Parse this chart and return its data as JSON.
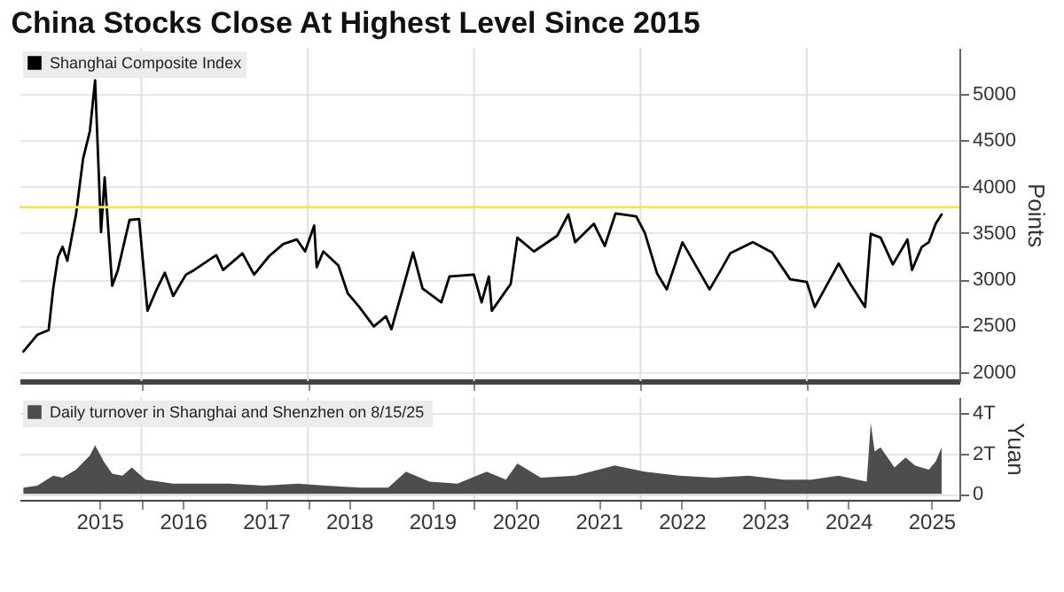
{
  "chart_data": [
    {
      "type": "line",
      "title": "China Stocks Close At Highest Level Since 2015",
      "ylabel": "Points",
      "legend": "top left",
      "grid": true,
      "tick_labels": "y",
      "x": [
        "2014-08-01",
        "2014-10-01",
        "2014-11-20",
        "2014-12-10",
        "2014-12-31",
        "2015-01-20",
        "2015-02-10",
        "2015-03-20",
        "2015-04-20",
        "2015-05-20",
        "2015-06-12",
        "2015-07-08",
        "2015-07-24",
        "2015-08-26",
        "2015-09-20",
        "2015-11-10",
        "2015-12-22",
        "2016-01-28",
        "2016-03-10",
        "2016-04-13",
        "2016-05-20",
        "2016-07-15",
        "2016-08-20",
        "2016-11-25",
        "2016-12-25",
        "2017-03-20",
        "2017-05-10",
        "2017-07-15",
        "2017-09-15",
        "2017-11-14",
        "2017-12-20",
        "2018-01-29",
        "2018-02-09",
        "2018-03-10",
        "2018-05-15",
        "2018-06-25",
        "2018-08-15",
        "2018-10-18",
        "2018-12-10",
        "2019-01-03",
        "2019-04-08",
        "2019-05-20",
        "2019-08-10",
        "2019-09-15",
        "2019-12-31",
        "2020-02-03",
        "2020-03-06",
        "2020-03-19",
        "2020-06-10",
        "2020-07-09",
        "2020-09-20",
        "2020-12-31",
        "2021-02-18",
        "2021-03-20",
        "2021-06-10",
        "2021-07-28",
        "2021-09-13",
        "2021-12-13",
        "2022-01-20",
        "2022-03-15",
        "2022-04-26",
        "2022-07-04",
        "2022-10-31",
        "2022-12-20",
        "2023-01-30",
        "2023-05-09",
        "2023-08-01",
        "2023-10-20",
        "2024-01-01",
        "2024-02-05",
        "2024-05-20",
        "2024-07-10",
        "2024-09-13",
        "2024-10-08",
        "2024-11-20",
        "2025-01-13",
        "2025-03-18",
        "2025-04-07",
        "2025-05-20",
        "2025-06-20",
        "2025-07-20",
        "2025-08-15"
      ],
      "series": [
        {
          "name": "Shanghai Composite Index",
          "color": "#000000",
          "values": [
            2220,
            2400,
            2450,
            2900,
            3240,
            3350,
            3200,
            3700,
            4300,
            4600,
            5150,
            3510,
            4100,
            2930,
            3100,
            3640,
            3650,
            2660,
            2900,
            3070,
            2820,
            3050,
            3100,
            3260,
            3100,
            3280,
            3050,
            3250,
            3380,
            3430,
            3300,
            3580,
            3130,
            3300,
            3150,
            2850,
            2700,
            2490,
            2600,
            2460,
            3290,
            2900,
            2750,
            3030,
            3050,
            2750,
            3030,
            2660,
            2950,
            3450,
            3300,
            3470,
            3700,
            3400,
            3600,
            3360,
            3710,
            3680,
            3500,
            3060,
            2890,
            3400,
            2890,
            3100,
            3280,
            3400,
            3290,
            3000,
            2970,
            2700,
            3170,
            2950,
            2700,
            3490,
            3450,
            3160,
            3430,
            3100,
            3350,
            3400,
            3600,
            3700
          ]
        }
      ],
      "xlim": [
        "2014-07-15",
        "2025-11-01"
      ],
      "xticks": [
        {
          "value": "2016-01-01",
          "label": null
        },
        {
          "value": "2018-01-01",
          "label": null
        },
        {
          "value": "2020-01-01",
          "label": null
        },
        {
          "value": "2022-01-01",
          "label": null
        },
        {
          "value": "2024-01-01",
          "label": null
        }
      ],
      "ylim": [
        1900,
        5500
      ],
      "yticks": [
        2000,
        2500,
        3000,
        3500,
        4000,
        4500,
        5000
      ],
      "ref_lines": [
        {
          "axis": "y",
          "value": 3780,
          "color": "#f2e36b"
        }
      ]
    },
    {
      "type": "area",
      "ylabel": "Yuan",
      "legend": "top left",
      "grid": true,
      "x": [
        "2014-08-01",
        "2014-10-01",
        "2014-12-10",
        "2015-01-20",
        "2015-03-20",
        "2015-05-20",
        "2015-06-12",
        "2015-07-20",
        "2015-08-26",
        "2015-10-10",
        "2015-11-20",
        "2016-01-20",
        "2016-05-20",
        "2016-09-20",
        "2017-01-20",
        "2017-06-20",
        "2017-11-20",
        "2018-03-20",
        "2018-08-20",
        "2018-12-20",
        "2019-03-08",
        "2019-06-20",
        "2019-10-20",
        "2020-02-25",
        "2020-05-20",
        "2020-07-09",
        "2020-10-20",
        "2021-03-20",
        "2021-09-10",
        "2022-01-20",
        "2022-06-20",
        "2022-11-20",
        "2023-04-20",
        "2023-09-20",
        "2024-01-20",
        "2024-05-20",
        "2024-09-20",
        "2024-10-08",
        "2024-10-25",
        "2024-11-20",
        "2025-01-20",
        "2025-03-10",
        "2025-04-20",
        "2025-06-20",
        "2025-07-20",
        "2025-08-15"
      ],
      "series": [
        {
          "name": "Daily turnover in Shanghai and Shenzhen  on 8/15/25",
          "color": "#4d4d4d",
          "values": [
            0.3,
            0.4,
            0.9,
            0.8,
            1.2,
            1.9,
            2.4,
            1.6,
            1.0,
            0.9,
            1.3,
            0.7,
            0.5,
            0.5,
            0.5,
            0.4,
            0.5,
            0.4,
            0.3,
            0.3,
            1.1,
            0.6,
            0.5,
            1.1,
            0.7,
            1.5,
            0.8,
            0.9,
            1.4,
            1.1,
            0.9,
            0.8,
            0.9,
            0.7,
            0.7,
            0.9,
            0.6,
            3.5,
            2.1,
            2.3,
            1.3,
            1.8,
            1.4,
            1.2,
            1.6,
            2.3
          ]
        }
      ],
      "xlim": [
        "2014-07-15",
        "2025-11-01"
      ],
      "xticks": [
        {
          "value": "2015-07-01",
          "label": "2015"
        },
        {
          "value": "2016-07-01",
          "label": "2016"
        },
        {
          "value": "2017-07-01",
          "label": "2017"
        },
        {
          "value": "2018-07-01",
          "label": "2018"
        },
        {
          "value": "2019-07-01",
          "label": "2019"
        },
        {
          "value": "2020-07-01",
          "label": "2020"
        },
        {
          "value": "2021-07-01",
          "label": "2021"
        },
        {
          "value": "2022-07-01",
          "label": "2022"
        },
        {
          "value": "2023-07-01",
          "label": "2023"
        },
        {
          "value": "2024-07-01",
          "label": "2024"
        },
        {
          "value": "2025-07-01",
          "label": "2025"
        },
        {
          "value": "2016-01-01",
          "label": null
        },
        {
          "value": "2018-01-01",
          "label": null
        },
        {
          "value": "2020-01-01",
          "label": null
        },
        {
          "value": "2022-01-01",
          "label": null
        },
        {
          "value": "2024-01-01",
          "label": null
        }
      ],
      "ylim": [
        -0.3,
        4.8
      ],
      "yticks": [
        0,
        {
          "value": 2,
          "label": "2T"
        },
        {
          "value": 4,
          "label": "4T"
        }
      ]
    }
  ]
}
